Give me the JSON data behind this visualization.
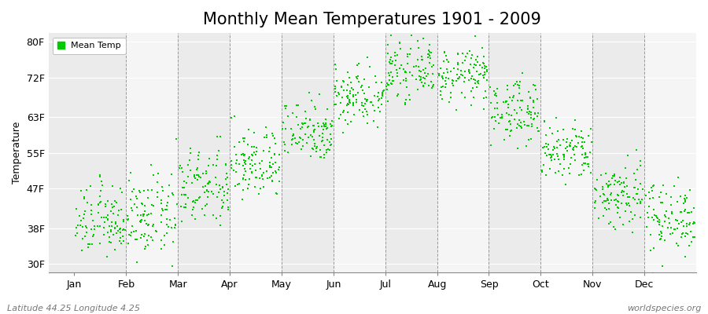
{
  "title": "Monthly Mean Temperatures 1901 - 2009",
  "ylabel": "Temperature",
  "xlabel_months": [
    "Jan",
    "Feb",
    "Mar",
    "Apr",
    "May",
    "Jun",
    "Jul",
    "Aug",
    "Sep",
    "Oct",
    "Nov",
    "Dec"
  ],
  "ytick_labels": [
    "30F",
    "38F",
    "47F",
    "55F",
    "63F",
    "72F",
    "80F"
  ],
  "ytick_values": [
    30,
    38,
    47,
    55,
    63,
    72,
    80
  ],
  "ylim": [
    28,
    82
  ],
  "xlim": [
    -0.5,
    12.0
  ],
  "legend_label": "Mean Temp",
  "dot_color": "#00CC00",
  "dot_size": 2.5,
  "background_color": "#FFFFFF",
  "plot_bg_color": "#EBEBEB",
  "plot_bg_alt_color": "#F5F5F5",
  "grid_color": "#FFFFFF",
  "dashed_line_color": "#999999",
  "footer_left": "Latitude 44.25 Longitude 4.25",
  "footer_right": "worldspecies.org",
  "n_years": 109,
  "monthly_means_F": [
    39.5,
    40.5,
    47.0,
    52.5,
    60.0,
    68.0,
    73.5,
    72.5,
    64.5,
    55.0,
    45.5,
    40.5
  ],
  "monthly_stds_F": [
    4.0,
    4.5,
    4.5,
    4.0,
    3.5,
    3.5,
    3.0,
    3.0,
    3.5,
    3.5,
    4.0,
    4.0
  ],
  "title_fontsize": 15,
  "axis_fontsize": 9,
  "footer_fontsize": 8
}
